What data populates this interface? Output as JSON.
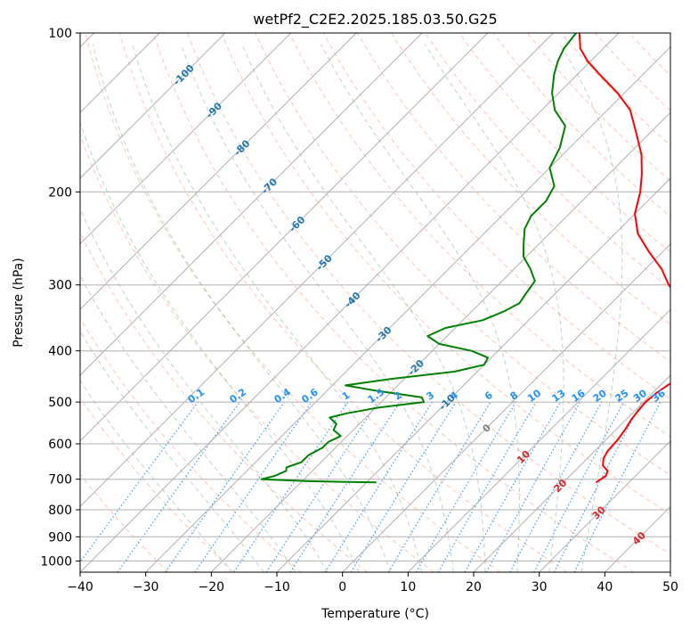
{
  "chart_data": {
    "type": "line",
    "title": "wetPf2_C2E2.2025.185.03.50.G25",
    "xlabel": "Temperature (°C)",
    "ylabel": "Pressure (hPa)",
    "xlim": [
      -40,
      50
    ],
    "ylim": [
      1050,
      100
    ],
    "y_scale": "log",
    "grid": true,
    "x_ticks": [
      -40,
      -30,
      -20,
      -10,
      0,
      10,
      20,
      30,
      40,
      50
    ],
    "y_ticks": [
      100,
      200,
      300,
      400,
      500,
      600,
      700,
      800,
      900,
      1000
    ],
    "series": [
      {
        "role": "temperature",
        "color": "#ff0000",
        "points": [
          [
            25.0,
            710
          ],
          [
            25.5,
            690
          ],
          [
            25.0,
            675
          ],
          [
            23.5,
            660
          ],
          [
            22.5,
            640
          ],
          [
            22.0,
            620
          ],
          [
            21.8,
            590
          ],
          [
            21.3,
            560
          ],
          [
            20.8,
            540
          ],
          [
            20.5,
            520
          ],
          [
            20.3,
            500
          ],
          [
            20.6,
            480
          ],
          [
            21.3,
            460
          ],
          [
            21.0,
            440
          ],
          [
            19.7,
            420
          ],
          [
            19.0,
            400
          ],
          [
            18.2,
            380
          ],
          [
            16.5,
            360
          ],
          [
            13.5,
            340
          ],
          [
            10.0,
            320
          ],
          [
            6.0,
            300
          ],
          [
            2.5,
            280
          ],
          [
            -2.0,
            260
          ],
          [
            -6.5,
            240
          ],
          [
            -10.0,
            220
          ],
          [
            -12.5,
            200
          ],
          [
            -15.0,
            185
          ],
          [
            -18.0,
            170
          ],
          [
            -22.0,
            155
          ],
          [
            -26.5,
            140
          ],
          [
            -31.0,
            130
          ],
          [
            -36.5,
            120
          ],
          [
            -40.5,
            113
          ],
          [
            -43.5,
            107
          ],
          [
            -46.0,
            100
          ]
        ]
      },
      {
        "role": "dewpoint",
        "color": "#008000",
        "points": [
          [
            -8.5,
            710
          ],
          [
            -14.0,
            708
          ],
          [
            -19.0,
            706
          ],
          [
            -26.5,
            700
          ],
          [
            -25.0,
            690
          ],
          [
            -24.0,
            675
          ],
          [
            -24.5,
            665
          ],
          [
            -23.0,
            650
          ],
          [
            -23.0,
            630
          ],
          [
            -22.0,
            610
          ],
          [
            -22.0,
            595
          ],
          [
            -21.0,
            580
          ],
          [
            -23.0,
            565
          ],
          [
            -23.5,
            550
          ],
          [
            -25.5,
            535
          ],
          [
            -23.5,
            525
          ],
          [
            -19.5,
            512
          ],
          [
            -13.5,
            500
          ],
          [
            -14.5,
            490
          ],
          [
            -23.0,
            475
          ],
          [
            -28.0,
            465
          ],
          [
            -22.0,
            452
          ],
          [
            -13.5,
            438
          ],
          [
            -10.0,
            425
          ],
          [
            -10.5,
            412
          ],
          [
            -14.0,
            400
          ],
          [
            -20.0,
            388
          ],
          [
            -23.0,
            375
          ],
          [
            -21.5,
            362
          ],
          [
            -17.0,
            350
          ],
          [
            -15.0,
            336
          ],
          [
            -14.0,
            325
          ],
          [
            -14.5,
            310
          ],
          [
            -15.0,
            295
          ],
          [
            -17.5,
            280
          ],
          [
            -20.5,
            265
          ],
          [
            -22.5,
            250
          ],
          [
            -24.5,
            235
          ],
          [
            -25.5,
            222
          ],
          [
            -25.5,
            208
          ],
          [
            -26.5,
            195
          ],
          [
            -30.0,
            180
          ],
          [
            -31.5,
            165
          ],
          [
            -34.0,
            150
          ],
          [
            -38.0,
            140
          ],
          [
            -41.0,
            130
          ],
          [
            -43.5,
            120
          ],
          [
            -45.0,
            113
          ],
          [
            -46.0,
            107
          ],
          [
            -46.5,
            100
          ]
        ]
      }
    ],
    "dry_adiabats_theta_c": [
      -30,
      -20,
      -10,
      0,
      10,
      20,
      30,
      40,
      50,
      60,
      70,
      80,
      90,
      100,
      110,
      120,
      130,
      140,
      150,
      160,
      170,
      180
    ],
    "moist_adiabats_t_c": [
      -20,
      -15,
      -10,
      -5,
      0,
      5,
      10,
      15,
      20,
      25,
      30,
      35
    ],
    "isotherm_labels": [
      {
        "text": "-100",
        "t": -100,
        "p": 120
      },
      {
        "text": "-90",
        "t": -90,
        "p": 140
      },
      {
        "text": "-80",
        "t": -80,
        "p": 165
      },
      {
        "text": "-70",
        "t": -70,
        "p": 195
      },
      {
        "text": "-60",
        "t": -60,
        "p": 230
      },
      {
        "text": "-50",
        "t": -50,
        "p": 272
      },
      {
        "text": "-40",
        "t": -40,
        "p": 320
      },
      {
        "text": "-30",
        "t": -30,
        "p": 372
      },
      {
        "text": "-20",
        "t": -20,
        "p": 430
      },
      {
        "text": "-10",
        "t": -10,
        "p": 500
      },
      {
        "text": "0",
        "t": 0,
        "p": 560
      },
      {
        "text": "10",
        "t": 10,
        "p": 635
      },
      {
        "text": "20",
        "t": 20,
        "p": 720
      },
      {
        "text": "30",
        "t": 30,
        "p": 810
      },
      {
        "text": "40",
        "t": 40,
        "p": 905
      }
    ],
    "mixing_ratio_labels": [
      "0.1",
      "0.2",
      "0.4",
      "0.6",
      "1",
      "1.5",
      "2",
      "3",
      "4",
      "6",
      "8",
      "10",
      "13",
      "16",
      "20",
      "25",
      "30",
      "36"
    ],
    "colors": {
      "temperature": "#ff0000",
      "dewpoint": "#008000",
      "isotherm_label_cold": "#1f77b4",
      "isotherm_label_zero": "#808080",
      "isotherm_label_warm": "#d62728",
      "mixing_ratio": "#1e90ff",
      "dry_adiabat": "#ff7f50",
      "moist_adiabat": "#2e8b57",
      "grid": "#b0b0b0"
    }
  }
}
